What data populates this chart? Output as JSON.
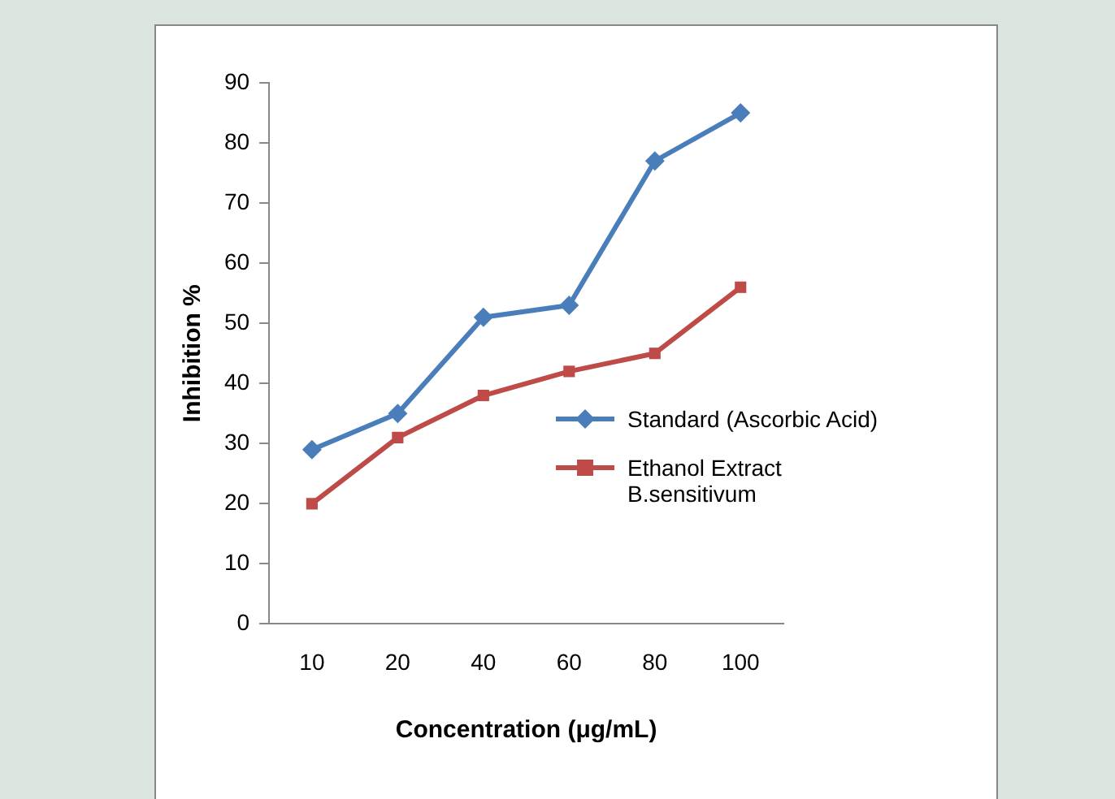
{
  "chart_data": {
    "type": "line",
    "xlabel": "Concentration (μg/mL)",
    "ylabel": "Inhibition %",
    "categories": [
      "10",
      "20",
      "40",
      "60",
      "80",
      "100"
    ],
    "series": [
      {
        "name": "Standard (Ascorbic Acid)",
        "color": "#4a7ebb",
        "marker": "diamond",
        "values": [
          29,
          35,
          51,
          53,
          77,
          85
        ]
      },
      {
        "name": "Ethanol Extract B.sensitivum",
        "color": "#be4b48",
        "marker": "square",
        "values": [
          20,
          31,
          38,
          42,
          45,
          56
        ]
      }
    ],
    "ylim": [
      0,
      90
    ],
    "yticks": [
      0,
      10,
      20,
      30,
      40,
      50,
      60,
      70,
      80,
      90
    ],
    "grid": false,
    "legend": "right"
  }
}
